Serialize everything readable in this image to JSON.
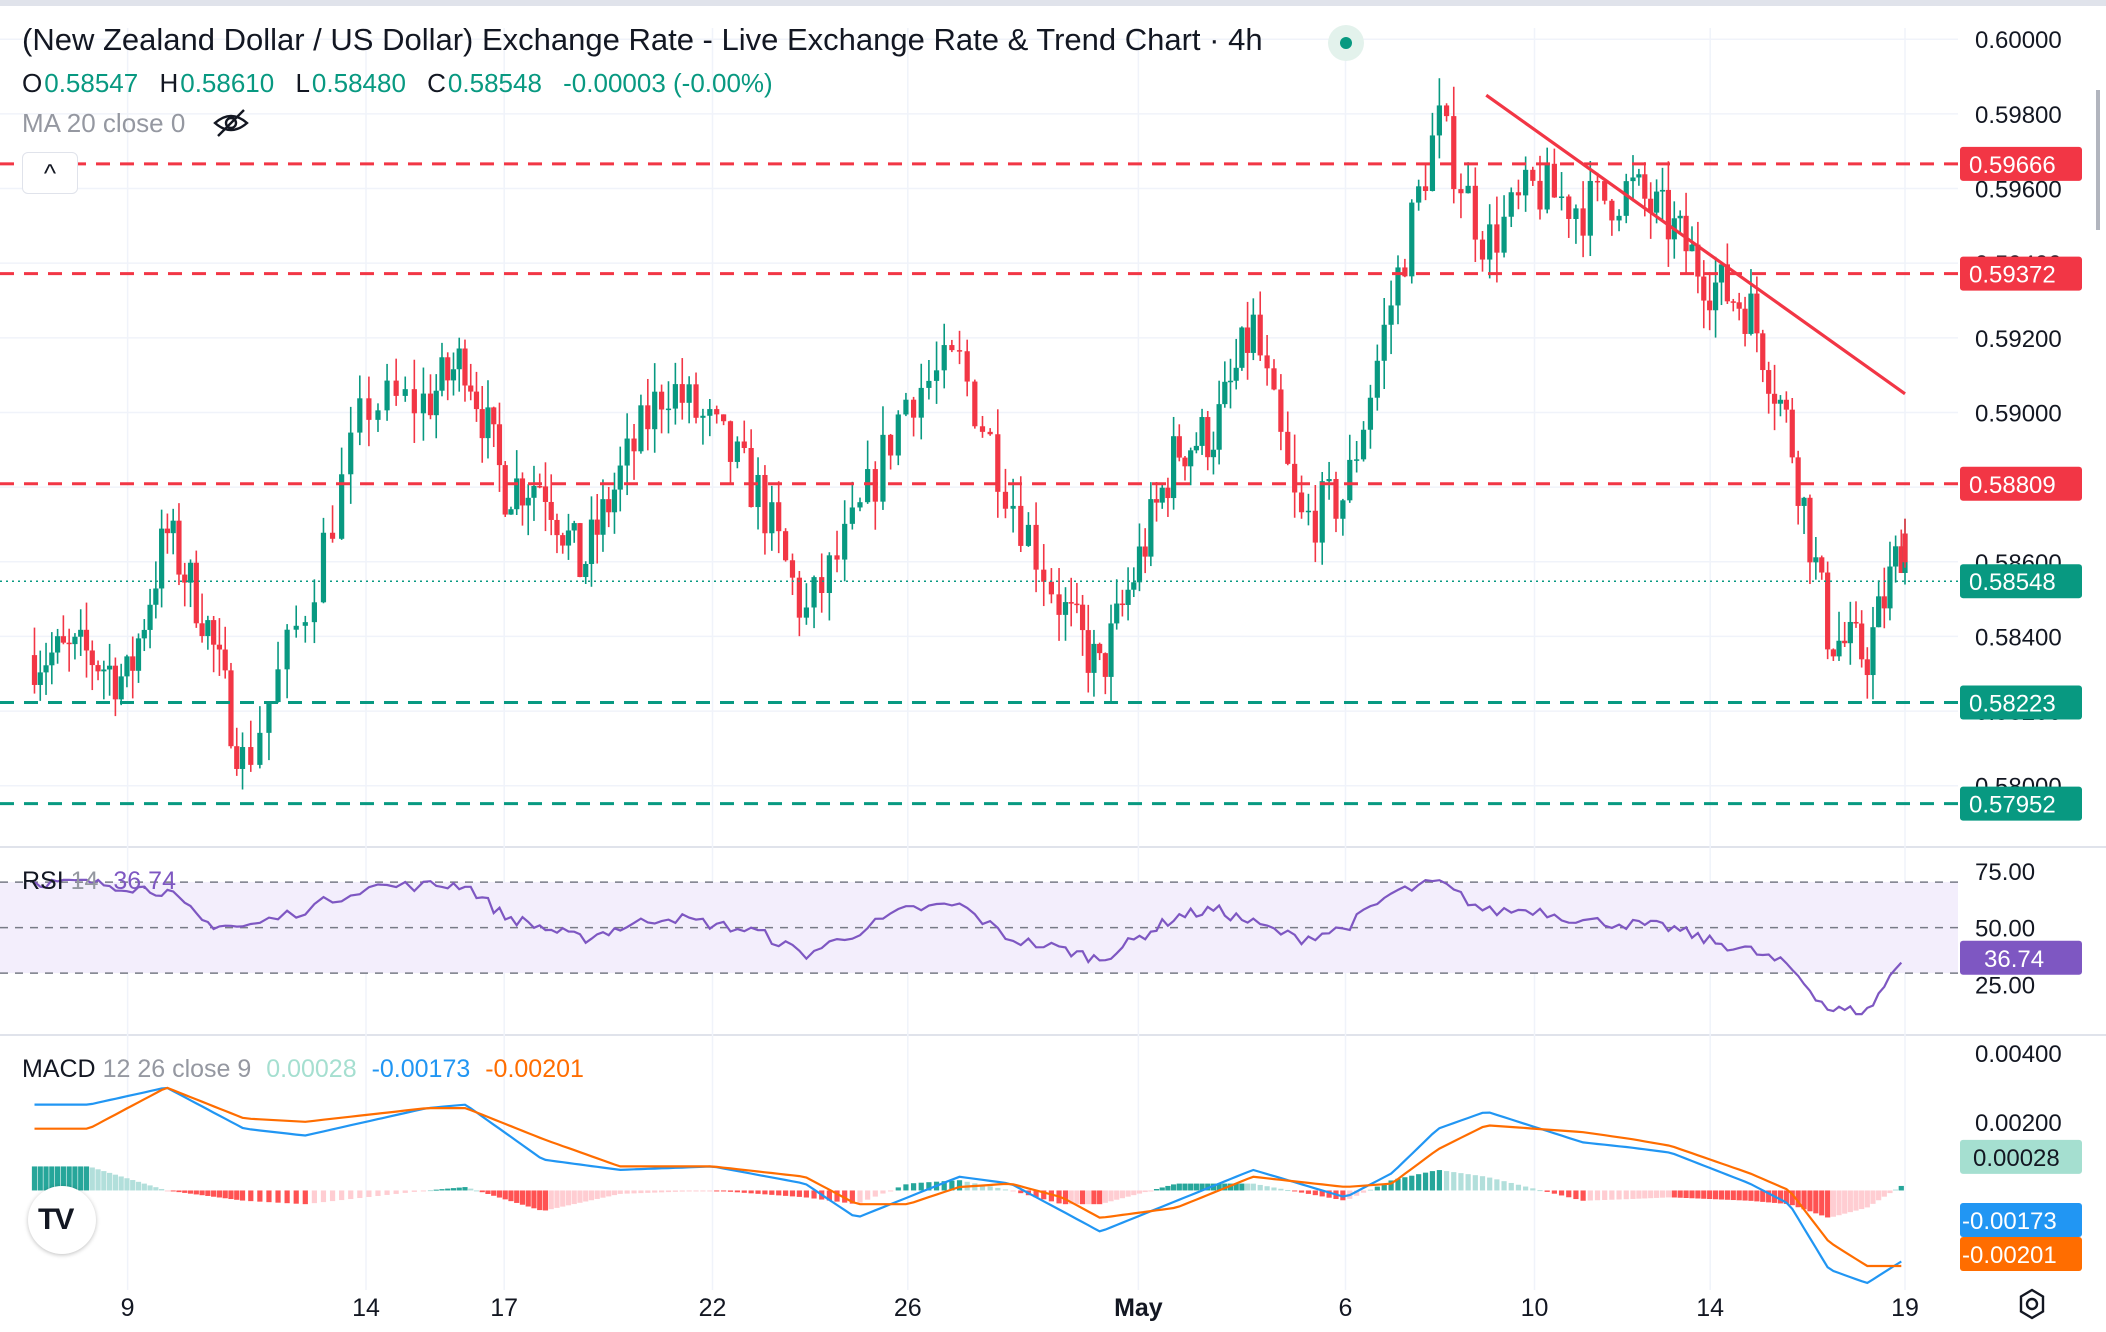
{
  "header": {
    "title": "(New Zealand Dollar / US Dollar) Exchange Rate - Live Exchange Rate & Trend Chart · 4h",
    "ohlc": [
      {
        "k": "O",
        "v": "0.58547"
      },
      {
        "k": "H",
        "v": "0.58610"
      },
      {
        "k": "L",
        "v": "0.58480"
      },
      {
        "k": "C",
        "v": "0.58548"
      }
    ],
    "change": "-0.00003 (-0.00%)",
    "ma_label": "MA 20 close 0",
    "collapse_glyph": "^"
  },
  "rsi": {
    "name": "RSI",
    "params": "14",
    "value": "36.74"
  },
  "macd": {
    "name": "MACD",
    "params": "12 26 close 9",
    "hist": "0.00028",
    "macd": "-0.00173",
    "signal": "-0.00201"
  },
  "colors": {
    "up": "#089981",
    "down": "#f23645",
    "trend": "#f23645",
    "macd_line": "#2196f3",
    "signal_line": "#ff6d00",
    "rsi_line": "#7e57c2"
  },
  "icons": [
    "live-dot-icon",
    "eye-off-icon",
    "chevron-up-icon",
    "tradingview-logo-icon",
    "settings-icon"
  ],
  "chart_data": [
    {
      "type": "candlestick",
      "title": "(New Zealand Dollar / US Dollar) Exchange Rate - Live Exchange Rate & Trend Chart · 4h",
      "x_tick_labels": [
        "9",
        "14",
        "17",
        "22",
        "26",
        "May",
        "6",
        "10",
        "14",
        "19"
      ],
      "y_ticks": [
        "0.60000",
        "0.59800",
        "0.59600",
        "0.59400",
        "0.59200",
        "0.59000",
        "0.58800",
        "0.58600",
        "0.58400",
        "0.58200",
        "0.58000"
      ],
      "ylim": [
        0.5786,
        0.6003
      ],
      "last_price": "0.58548",
      "levels": [
        {
          "value": 0.59666,
          "label": "0.59666",
          "style": "dashed",
          "color": "#f23645"
        },
        {
          "value": 0.59372,
          "label": "0.59372",
          "style": "dashed",
          "color": "#f23645"
        },
        {
          "value": 0.58809,
          "label": "0.58809",
          "style": "dashed",
          "color": "#f23645"
        },
        {
          "value": 0.58548,
          "label": "0.58548",
          "style": "dotted",
          "color": "#089981"
        },
        {
          "value": 0.58223,
          "label": "0.58223",
          "style": "dashed",
          "color": "#089981"
        },
        {
          "value": 0.57952,
          "label": "0.57952",
          "style": "dashed",
          "color": "#089981"
        }
      ],
      "trendline": {
        "from": {
          "date": "May 8",
          "price": 0.5985
        },
        "to": {
          "date": "May 20",
          "price": 0.5905
        }
      },
      "close_waypoints": [
        {
          "d": "Apr 8",
          "c": 0.5835
        },
        {
          "d": "Apr 9",
          "c": 0.5828
        },
        {
          "d": "Apr 10",
          "c": 0.5868
        },
        {
          "d": "Apr 11",
          "c": 0.5845
        },
        {
          "d": "Apr 12",
          "c": 0.5805
        },
        {
          "d": "Apr 13",
          "c": 0.5848
        },
        {
          "d": "Apr 14",
          "c": 0.5902
        },
        {
          "d": "Apr 15",
          "c": 0.5903
        },
        {
          "d": "Apr 16",
          "c": 0.5915
        },
        {
          "d": "Apr 17",
          "c": 0.588
        },
        {
          "d": "Apr 18",
          "c": 0.5882
        },
        {
          "d": "Apr 19",
          "c": 0.5858
        },
        {
          "d": "Apr 21",
          "c": 0.5908
        },
        {
          "d": "Apr 22",
          "c": 0.5895
        },
        {
          "d": "Apr 23",
          "c": 0.5878
        },
        {
          "d": "Apr 24",
          "c": 0.5845
        },
        {
          "d": "Apr 25",
          "c": 0.587
        },
        {
          "d": "Apr 26",
          "c": 0.5905
        },
        {
          "d": "Apr 27",
          "c": 0.5913
        },
        {
          "d": "Apr 28",
          "c": 0.5878
        },
        {
          "d": "Apr 29",
          "c": 0.5848
        },
        {
          "d": "Apr 30",
          "c": 0.583
        },
        {
          "d": "May 1",
          "c": 0.589
        },
        {
          "d": "May 2",
          "c": 0.5895
        },
        {
          "d": "May 3",
          "c": 0.5923
        },
        {
          "d": "May 4",
          "c": 0.587
        },
        {
          "d": "May 5",
          "c": 0.5878
        },
        {
          "d": "May 6",
          "c": 0.593
        },
        {
          "d": "May 7",
          "c": 0.5978
        },
        {
          "d": "May 8",
          "c": 0.5945
        },
        {
          "d": "May 9",
          "c": 0.596
        },
        {
          "d": "May 10",
          "c": 0.5955
        },
        {
          "d": "May 11",
          "c": 0.596
        },
        {
          "d": "May 12",
          "c": 0.595
        },
        {
          "d": "May 13",
          "c": 0.5935
        },
        {
          "d": "May 14",
          "c": 0.5928
        },
        {
          "d": "May 15",
          "c": 0.5895
        },
        {
          "d": "May 16",
          "c": 0.584
        },
        {
          "d": "May 17",
          "c": 0.5835
        },
        {
          "d": "May 18",
          "c": 0.5868
        },
        {
          "d": "May 19",
          "c": 0.5855
        }
      ]
    },
    {
      "type": "line",
      "name": "RSI 14",
      "y_ticks": [
        "75.00",
        "50.00",
        "25.00"
      ],
      "ylim": [
        5,
        85
      ],
      "bands": [
        70,
        50,
        30
      ],
      "last_value": "36.74",
      "waypoints": [
        {
          "d": "Apr 8",
          "v": 70
        },
        {
          "d": "Apr 10",
          "v": 66
        },
        {
          "d": "Apr 11",
          "v": 52
        },
        {
          "d": "Apr 12",
          "v": 50
        },
        {
          "d": "Apr 13",
          "v": 58
        },
        {
          "d": "Apr 14",
          "v": 68
        },
        {
          "d": "Apr 16",
          "v": 69
        },
        {
          "d": "Apr 17",
          "v": 55
        },
        {
          "d": "Apr 19",
          "v": 45
        },
        {
          "d": "Apr 21",
          "v": 55
        },
        {
          "d": "Apr 23",
          "v": 48
        },
        {
          "d": "Apr 24",
          "v": 38
        },
        {
          "d": "Apr 26",
          "v": 58
        },
        {
          "d": "Apr 27",
          "v": 60
        },
        {
          "d": "Apr 28",
          "v": 45
        },
        {
          "d": "Apr 30",
          "v": 36
        },
        {
          "d": "May 1",
          "v": 55
        },
        {
          "d": "May 2",
          "v": 58
        },
        {
          "d": "May 3",
          "v": 52
        },
        {
          "d": "May 4",
          "v": 45
        },
        {
          "d": "May 5",
          "v": 50
        },
        {
          "d": "May 6",
          "v": 65
        },
        {
          "d": "May 7",
          "v": 70
        },
        {
          "d": "May 8",
          "v": 57
        },
        {
          "d": "May 9",
          "v": 58
        },
        {
          "d": "May 10",
          "v": 53
        },
        {
          "d": "May 12",
          "v": 50
        },
        {
          "d": "May 13",
          "v": 44
        },
        {
          "d": "May 14",
          "v": 40
        },
        {
          "d": "May 15",
          "v": 33
        },
        {
          "d": "May 16",
          "v": 14
        },
        {
          "d": "May 17",
          "v": 13
        },
        {
          "d": "May 18",
          "v": 38
        },
        {
          "d": "May 19",
          "v": 36.74
        }
      ]
    },
    {
      "type": "line",
      "name": "MACD 12 26 close 9",
      "y_ticks": [
        "0.00400",
        "0.00200",
        "0.00028",
        "-0.00173",
        "-0.00201"
      ],
      "ylim": [
        -0.0029,
        0.0045
      ],
      "series": [
        {
          "name": "MACD",
          "waypoints": [
            {
              "d": "Apr 8",
              "v": 0.0025
            },
            {
              "d": "Apr 10",
              "v": 0.003
            },
            {
              "d": "Apr 12",
              "v": 0.0018
            },
            {
              "d": "Apr 13",
              "v": 0.0016
            },
            {
              "d": "Apr 15",
              "v": 0.0024
            },
            {
              "d": "Apr 16",
              "v": 0.0025
            },
            {
              "d": "Apr 18",
              "v": 0.0009
            },
            {
              "d": "Apr 20",
              "v": 0.0006
            },
            {
              "d": "Apr 22",
              "v": 0.0007
            },
            {
              "d": "Apr 24",
              "v": 0.0002
            },
            {
              "d": "Apr 25",
              "v": -0.0008
            },
            {
              "d": "Apr 26",
              "v": -0.0002
            },
            {
              "d": "Apr 27",
              "v": 0.0004
            },
            {
              "d": "Apr 28",
              "v": 0.0002
            },
            {
              "d": "Apr 29",
              "v": -0.0006
            },
            {
              "d": "Apr 30",
              "v": -0.0012
            },
            {
              "d": "May 1",
              "v": -0.0003
            },
            {
              "d": "May 3",
              "v": 0.0006
            },
            {
              "d": "May 5",
              "v": -0.0002
            },
            {
              "d": "May 6",
              "v": 0.0005
            },
            {
              "d": "May 7",
              "v": 0.0018
            },
            {
              "d": "May 8",
              "v": 0.0023
            },
            {
              "d": "May 10",
              "v": 0.0014
            },
            {
              "d": "May 12",
              "v": 0.0011
            },
            {
              "d": "May 14",
              "v": 0.0002
            },
            {
              "d": "May 15",
              "v": -0.0004
            },
            {
              "d": "May 16",
              "v": -0.0023
            },
            {
              "d": "May 17",
              "v": -0.0027
            },
            {
              "d": "May 18",
              "v": -0.002
            },
            {
              "d": "May 19",
              "v": -0.00173
            }
          ]
        },
        {
          "name": "Signal",
          "waypoints": [
            {
              "d": "Apr 8",
              "v": 0.0018
            },
            {
              "d": "Apr 10",
              "v": 0.003
            },
            {
              "d": "Apr 12",
              "v": 0.0021
            },
            {
              "d": "Apr 13",
              "v": 0.002
            },
            {
              "d": "Apr 15",
              "v": 0.0024
            },
            {
              "d": "Apr 16",
              "v": 0.0024
            },
            {
              "d": "Apr 18",
              "v": 0.0015
            },
            {
              "d": "Apr 20",
              "v": 0.0007
            },
            {
              "d": "Apr 22",
              "v": 0.0007
            },
            {
              "d": "Apr 24",
              "v": 0.0004
            },
            {
              "d": "Apr 25",
              "v": -0.0004
            },
            {
              "d": "Apr 26",
              "v": -0.0004
            },
            {
              "d": "Apr 27",
              "v": 0.0001
            },
            {
              "d": "Apr 28",
              "v": 0.0002
            },
            {
              "d": "Apr 29",
              "v": -0.0002
            },
            {
              "d": "Apr 30",
              "v": -0.0008
            },
            {
              "d": "May 1",
              "v": -0.0005
            },
            {
              "d": "May 3",
              "v": 0.0004
            },
            {
              "d": "May 5",
              "v": 0.0001
            },
            {
              "d": "May 6",
              "v": 0.0002
            },
            {
              "d": "May 7",
              "v": 0.0012
            },
            {
              "d": "May 8",
              "v": 0.0019
            },
            {
              "d": "May 10",
              "v": 0.0017
            },
            {
              "d": "May 12",
              "v": 0.0013
            },
            {
              "d": "May 14",
              "v": 0.0005
            },
            {
              "d": "May 15",
              "v": 0.0
            },
            {
              "d": "May 16",
              "v": -0.0015
            },
            {
              "d": "May 17",
              "v": -0.0022
            },
            {
              "d": "May 18",
              "v": -0.0022
            },
            {
              "d": "May 19",
              "v": -0.00201
            }
          ]
        }
      ]
    }
  ]
}
